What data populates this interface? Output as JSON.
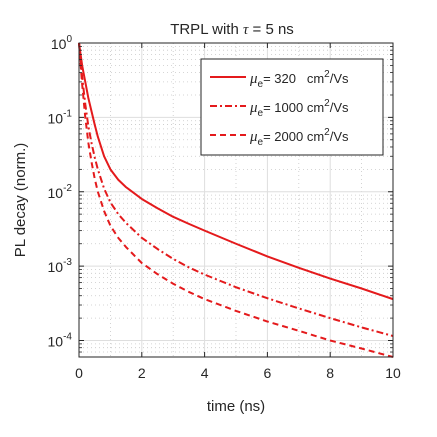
{
  "chart_data": {
    "type": "line",
    "title": "TRPL with τ = 5 ns",
    "title_parts": {
      "prefix": "TRPL with ",
      "symbol": "τ",
      "suffix": " = 5 ns"
    },
    "xlabel": "time (ns)",
    "ylabel": "PL decay (norm.)",
    "xlim": [
      0,
      10
    ],
    "ylim": [
      6e-05,
      1
    ],
    "y_scale": "log",
    "x_ticks": [
      0,
      2,
      4,
      6,
      8,
      10
    ],
    "x_tick_labels": [
      "0",
      "2",
      "4",
      "6",
      "8",
      "10"
    ],
    "y_ticks": [
      1,
      0.1,
      0.01,
      0.001,
      0.0001
    ],
    "y_tick_labels": [
      {
        "base": "10",
        "exp": "0"
      },
      {
        "base": "10",
        "exp": "-1"
      },
      {
        "base": "10",
        "exp": "-2"
      },
      {
        "base": "10",
        "exp": "-3"
      },
      {
        "base": "10",
        "exp": "-4"
      }
    ],
    "grid": true,
    "minor_grid": true,
    "legend_position": "top-right",
    "series": [
      {
        "name": "μe= 320 cm2/Vs",
        "legend": {
          "symbol": "μ",
          "sub": "e",
          "value": "= 320   cm",
          "sup": "2",
          "unit": "/Vs"
        },
        "color": "#e41a1c",
        "line_style": "solid",
        "x": [
          0,
          0.1,
          0.2,
          0.3,
          0.4,
          0.5,
          0.6,
          0.8,
          1,
          1.25,
          1.5,
          2,
          2.5,
          3,
          3.5,
          4,
          5,
          6,
          7,
          8,
          9,
          10
        ],
        "y": [
          1,
          0.5,
          0.3,
          0.18,
          0.12,
          0.08,
          0.055,
          0.03,
          0.02,
          0.0145,
          0.0115,
          0.008,
          0.006,
          0.0046,
          0.0037,
          0.003,
          0.002,
          0.00135,
          0.00095,
          0.00068,
          0.0005,
          0.00036
        ]
      },
      {
        "name": "μe= 1000 cm2/Vs",
        "legend": {
          "symbol": "μ",
          "sub": "e",
          "value": "= 1000 cm",
          "sup": "2",
          "unit": "/Vs"
        },
        "color": "#e41a1c",
        "line_style": "dashdot",
        "x": [
          0,
          0.1,
          0.2,
          0.3,
          0.4,
          0.5,
          0.6,
          0.8,
          1,
          1.25,
          1.5,
          2,
          2.5,
          3,
          3.5,
          4,
          5,
          6,
          7,
          8,
          9,
          10
        ],
        "y": [
          1,
          0.35,
          0.15,
          0.075,
          0.045,
          0.029,
          0.02,
          0.011,
          0.0072,
          0.005,
          0.0038,
          0.0024,
          0.0017,
          0.00125,
          0.00096,
          0.00077,
          0.00052,
          0.00037,
          0.00027,
          0.0002,
          0.00015,
          0.000115
        ]
      },
      {
        "name": "μe= 2000 cm2/Vs",
        "legend": {
          "symbol": "μ",
          "sub": "e",
          "value": "= 2000 cm",
          "sup": "2",
          "unit": "/Vs"
        },
        "color": "#e41a1c",
        "line_style": "dashed",
        "x": [
          0,
          0.1,
          0.2,
          0.3,
          0.4,
          0.5,
          0.6,
          0.8,
          1,
          1.25,
          1.5,
          2,
          2.5,
          3,
          3.5,
          4,
          5,
          6,
          7,
          8,
          9,
          10
        ],
        "y": [
          1,
          0.28,
          0.1,
          0.045,
          0.025,
          0.015,
          0.01,
          0.0055,
          0.0035,
          0.0024,
          0.0018,
          0.0011,
          0.00078,
          0.00058,
          0.00045,
          0.00036,
          0.00025,
          0.00018,
          0.000135,
          0.0001,
          7.8e-05,
          6e-05
        ]
      }
    ]
  }
}
